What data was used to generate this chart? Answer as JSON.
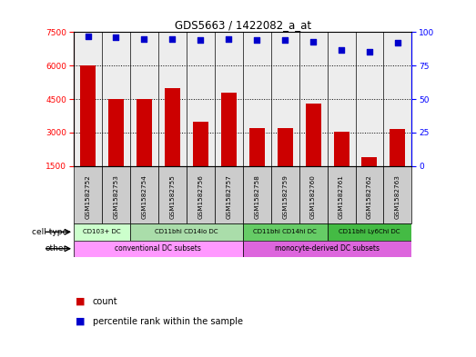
{
  "title": "GDS5663 / 1422082_a_at",
  "samples": [
    "GSM1582752",
    "GSM1582753",
    "GSM1582754",
    "GSM1582755",
    "GSM1582756",
    "GSM1582757",
    "GSM1582758",
    "GSM1582759",
    "GSM1582760",
    "GSM1582761",
    "GSM1582762",
    "GSM1582763"
  ],
  "counts": [
    6000,
    4500,
    4500,
    5000,
    3500,
    4800,
    3200,
    3200,
    4300,
    3050,
    1900,
    3150
  ],
  "percentiles": [
    97,
    96,
    95,
    95,
    94,
    95,
    94,
    94,
    93,
    87,
    85,
    92
  ],
  "ylim_left": [
    1500,
    7500
  ],
  "ylim_right": [
    0,
    100
  ],
  "yticks_left": [
    1500,
    3000,
    4500,
    6000,
    7500
  ],
  "yticks_right": [
    0,
    25,
    50,
    75,
    100
  ],
  "bar_color": "#cc0000",
  "dot_color": "#0000cc",
  "bar_bottom": 1500,
  "cell_spans": [
    {
      "text": "CD103+ DC",
      "start": 0,
      "end": 2,
      "color": "#ccffcc"
    },
    {
      "text": "CD11bhi CD14lo DC",
      "start": 2,
      "end": 6,
      "color": "#aaddaa"
    },
    {
      "text": "CD11bhi CD14hi DC",
      "start": 6,
      "end": 9,
      "color": "#66cc66"
    },
    {
      "text": "CD11bhi Ly6Chi DC",
      "start": 9,
      "end": 12,
      "color": "#44bb44"
    }
  ],
  "other_spans": [
    {
      "text": "conventional DC subsets",
      "start": 0,
      "end": 6,
      "color": "#ff99ff"
    },
    {
      "text": "monocyte-derived DC subsets",
      "start": 6,
      "end": 12,
      "color": "#dd66dd"
    }
  ],
  "col_bg_color": "#cccccc",
  "n_samples": 12
}
